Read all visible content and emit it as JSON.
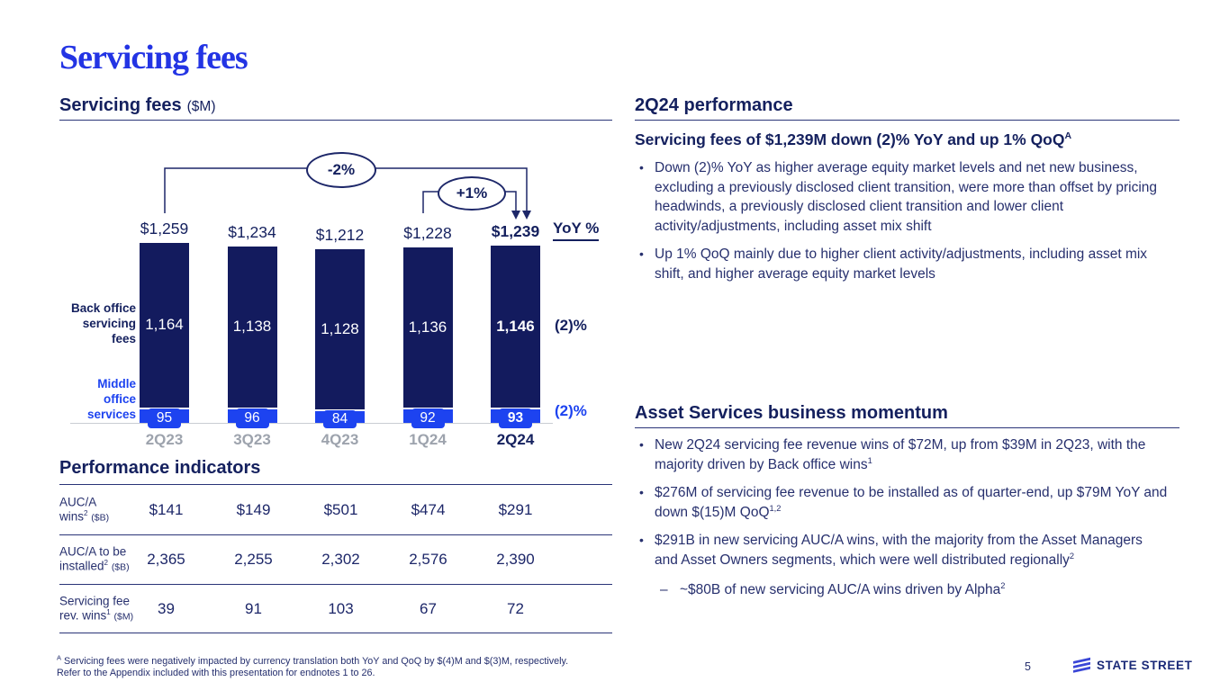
{
  "slide": {
    "title": "Servicing fees",
    "page_number": "5",
    "logo_text": "STATE STREET",
    "footnote_sup": "A",
    "footnote_line1": "Servicing fees were negatively impacted by currency translation both YoY and QoQ by $(4)M and $(3)M, respectively.",
    "footnote_line2": "Refer to the Appendix included with this presentation for endnotes 1 to 26."
  },
  "left": {
    "section_title": "Servicing fees",
    "section_unit": "($M)",
    "perf": {
      "title": "Performance indicators",
      "rows": [
        {
          "label_line1": "AUC/A",
          "label_line2": "wins",
          "label_sup": "2",
          "label_unit": "($B)",
          "values": [
            "$141",
            "$149",
            "$501",
            "$474",
            "$291"
          ]
        },
        {
          "label_line1": "AUC/A to be",
          "label_line2": "installed",
          "label_sup": "2",
          "label_unit": "($B)",
          "values": [
            "2,365",
            "2,255",
            "2,302",
            "2,576",
            "2,390"
          ]
        },
        {
          "label_line1": "Servicing fee",
          "label_line2": "rev. wins",
          "label_sup": "1",
          "label_unit": "($M)",
          "values": [
            "39",
            "91",
            "103",
            "67",
            "72"
          ]
        }
      ]
    }
  },
  "chart_data": {
    "type": "bar",
    "stacked": true,
    "title": "Servicing fees ($M)",
    "categories": [
      "2Q23",
      "3Q23",
      "4Q23",
      "1Q24",
      "2Q24"
    ],
    "series": [
      {
        "name": "Middle office services",
        "axis_label": "Middle\noffice\nservices",
        "values": [
          95,
          96,
          84,
          92,
          93
        ],
        "color": "#1d43f0"
      },
      {
        "name": "Back office servicing fees",
        "axis_label": "Back office\nservicing\nfees",
        "values": [
          1164,
          1138,
          1128,
          1136,
          1146
        ],
        "color": "#131b5e"
      }
    ],
    "totals": [
      "$1,259",
      "$1,234",
      "$1,212",
      "$1,228",
      "$1,239"
    ],
    "total_values": [
      1259,
      1234,
      1212,
      1228,
      1239
    ],
    "highlight_category": "2Q24",
    "yoy_header": "YoY %",
    "yoy": [
      {
        "label": "(2)%",
        "applies_to": "Back office servicing fees"
      },
      {
        "label": "(2)%",
        "applies_to": "Middle office services"
      }
    ],
    "annotations": [
      {
        "label": "-2%",
        "from": "2Q23",
        "to": "2Q24"
      },
      {
        "label": "+1%",
        "from": "1Q24",
        "to": "2Q24"
      }
    ],
    "ylim": [
      0,
      1259
    ],
    "legend_position": "left-axis-labels",
    "grid": false
  },
  "right": {
    "performance": {
      "title": "2Q24 performance",
      "headline": "Servicing fees of $1,239M down (2)% YoY and up 1% QoQ",
      "headline_sup": "A",
      "bullets": [
        "Down (2)% YoY as higher average equity market levels and net new business, excluding a previously disclosed client transition, were more than offset by pricing headwinds, a previously disclosed client transition and lower client activity/adjustments, including asset mix shift",
        "Up 1% QoQ mainly due to higher client activity/adjustments, including asset mix shift, and higher average equity market levels"
      ]
    },
    "momentum": {
      "title": "Asset Services business momentum",
      "bullets": [
        {
          "text": "New 2Q24 servicing fee revenue wins of $72M, up from $39M in 2Q23, with the majority driven by Back office wins",
          "sup": "1"
        },
        {
          "text": "$276M of servicing fee revenue to be installed as of quarter-end, up $79M YoY and down $(15)M QoQ",
          "sup": "1,2"
        },
        {
          "text": "$291B in new servicing AUC/A wins, with the majority from the Asset Managers and Asset Owners segments, which were well distributed regionally",
          "sup": "2"
        }
      ],
      "sub_bullet": {
        "text": "~$80B of new servicing AUC/A wins driven by Alpha",
        "sup": "2"
      }
    }
  }
}
